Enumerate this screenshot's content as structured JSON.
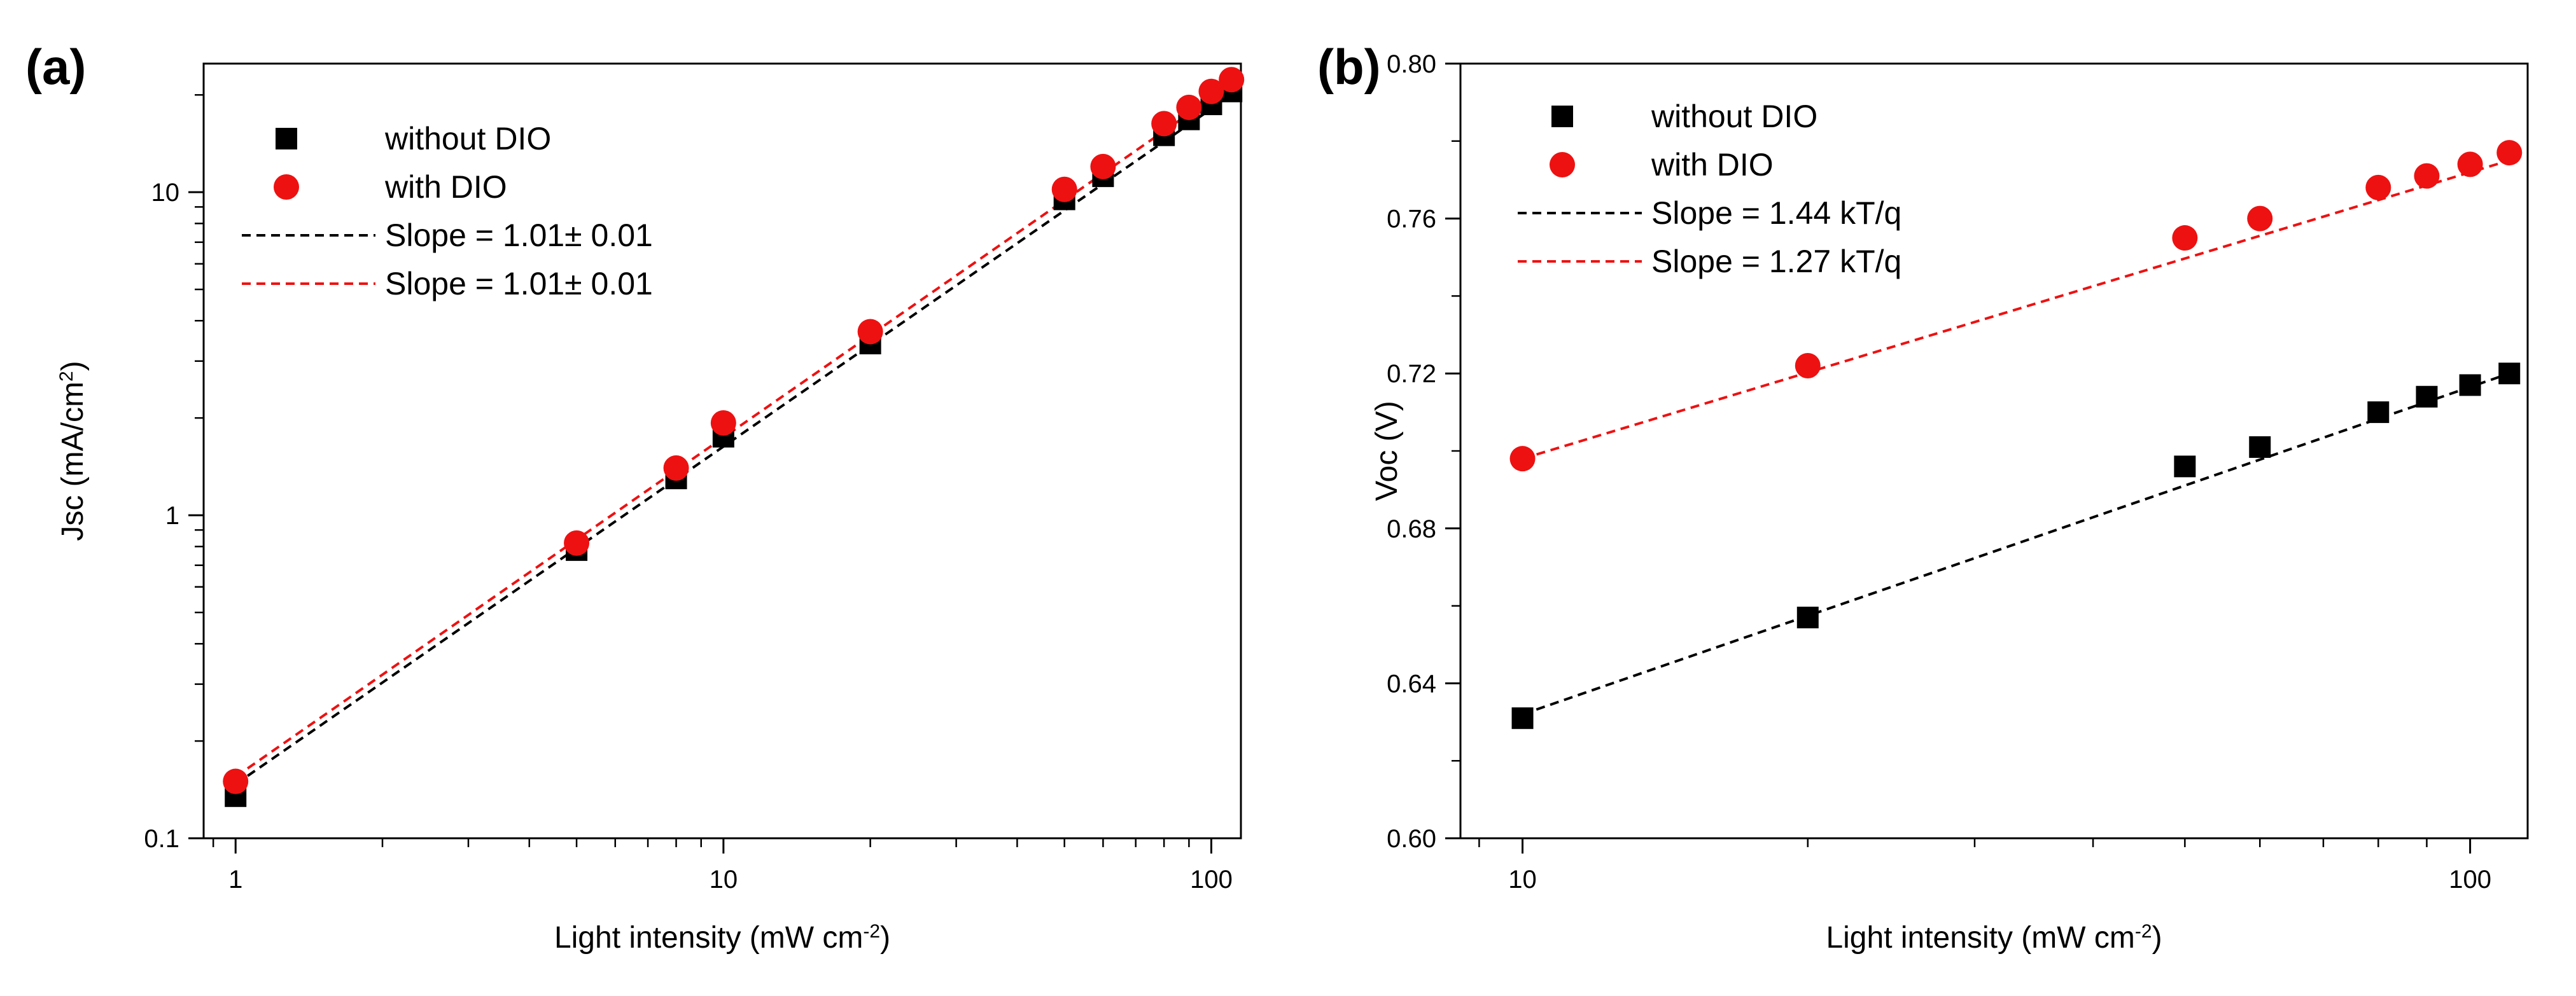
{
  "colors": {
    "without": "#000000",
    "with": "#ee1111"
  },
  "chart_data": [
    {
      "type": "scatter",
      "panel": "(a)",
      "xlabel": "Light intensity (mW cm",
      "xlabel_sup": "-2",
      "xlabel_end": ")",
      "ylabel": "Jsc (mA/cm",
      "ylabel_sup": "2",
      "ylabel_end": ")",
      "xscale": "log",
      "yscale": "log",
      "xlim": [
        0.86,
        115
      ],
      "ylim": [
        0.1,
        25
      ],
      "xticks": [
        {
          "v": 1,
          "label": "1"
        },
        {
          "v": 10,
          "label": "10"
        },
        {
          "v": 100,
          "label": "100"
        }
      ],
      "yticks": [
        {
          "v": 0.1,
          "label": "0.1"
        },
        {
          "v": 1,
          "label": "1"
        },
        {
          "v": 10,
          "label": "10"
        }
      ],
      "legend_position": "top-left",
      "series": [
        {
          "name": "without DIO",
          "marker": "square",
          "color": "#000000",
          "x": [
            1,
            5,
            8,
            10,
            20,
            50,
            60,
            80,
            90,
            100,
            110
          ],
          "y": [
            0.135,
            0.78,
            1.3,
            1.75,
            3.4,
            9.5,
            11.2,
            15,
            16.8,
            18.7,
            20.5
          ]
        },
        {
          "name": "with DIO",
          "marker": "circle",
          "color": "#ee1111",
          "x": [
            1,
            5,
            8,
            10,
            20,
            50,
            60,
            80,
            90,
            100,
            110
          ],
          "y": [
            0.15,
            0.82,
            1.4,
            1.93,
            3.7,
            10.2,
            12,
            16.3,
            18.3,
            20.5,
            22.3
          ]
        }
      ],
      "fits": [
        {
          "name": "Slope = 1.01± 0.01",
          "color": "#000000",
          "x": [
            1,
            110
          ],
          "y": [
            0.147,
            20.0
          ]
        },
        {
          "name": "Slope = 1.01± 0.01",
          "color": "#ee1111",
          "x": [
            1,
            110
          ],
          "y": [
            0.155,
            21.6
          ]
        }
      ]
    },
    {
      "type": "scatter",
      "panel": "(b)",
      "xlabel": "Light intensity (mW cm",
      "xlabel_sup": "-2",
      "xlabel_end": ")",
      "ylabel": "Voc (V)",
      "ylabel_sup": "",
      "ylabel_end": "",
      "xscale": "log",
      "yscale": "linear",
      "xlim": [
        8.6,
        115
      ],
      "ylim": [
        0.6,
        0.8
      ],
      "xticks": [
        {
          "v": 10,
          "label": "10"
        },
        {
          "v": 100,
          "label": "100"
        }
      ],
      "yticks": [
        {
          "v": 0.6,
          "label": "0.60"
        },
        {
          "v": 0.64,
          "label": "0.64"
        },
        {
          "v": 0.68,
          "label": "0.68"
        },
        {
          "v": 0.72,
          "label": "0.72"
        },
        {
          "v": 0.76,
          "label": "0.76"
        },
        {
          "v": 0.8,
          "label": "0.80"
        }
      ],
      "legend_position": "top-left",
      "series": [
        {
          "name": "without DIO",
          "marker": "square",
          "color": "#000000",
          "x": [
            10,
            20,
            50,
            60,
            80,
            90,
            100,
            110
          ],
          "y": [
            0.631,
            0.657,
            0.696,
            0.701,
            0.71,
            0.714,
            0.717,
            0.72
          ]
        },
        {
          "name": "with DIO",
          "marker": "circle",
          "color": "#ee1111",
          "x": [
            10,
            20,
            50,
            60,
            80,
            90,
            100,
            110
          ],
          "y": [
            0.698,
            0.722,
            0.755,
            0.76,
            0.768,
            0.771,
            0.774,
            0.777
          ]
        }
      ],
      "fits": [
        {
          "name": "Slope = 1.44 kT/q",
          "color": "#000000",
          "x": [
            10,
            110
          ],
          "y": [
            0.632,
            0.72
          ]
        },
        {
          "name": "Slope = 1.27 kT/q",
          "color": "#ee1111",
          "x": [
            10,
            110
          ],
          "y": [
            0.698,
            0.775
          ]
        }
      ]
    }
  ]
}
